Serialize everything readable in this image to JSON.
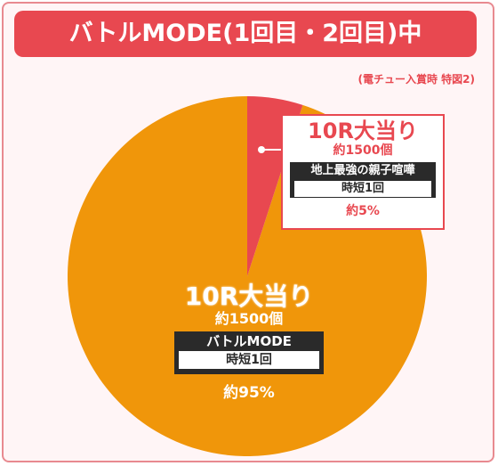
{
  "title": "バトルMODE(1回目・2回目)中",
  "note": "(電チュー入賞時 特図2)",
  "colors": {
    "small_slice": "#e84850",
    "large_slice": "#f0960a",
    "accent": "#e84850"
  },
  "chart_data": {
    "type": "pie",
    "slices": [
      {
        "head": "10R大当り",
        "sub": "約1500個",
        "mode": "地上最強の親子喧嘩",
        "result": "時短1回",
        "percent_label": "約5%",
        "value": 5
      },
      {
        "head": "10R大当り",
        "sub": "約1500個",
        "mode": "バトルMODE",
        "result": "時短1回",
        "percent_label": "約95%",
        "value": 95
      }
    ]
  }
}
